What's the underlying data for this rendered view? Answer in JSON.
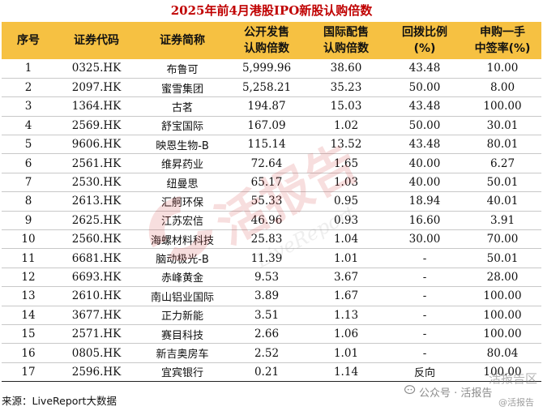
{
  "title": "2025年前4月港股IPO新股认购倍数",
  "columns": [
    {
      "line1": "序号",
      "line2": ""
    },
    {
      "line1": "证券代码",
      "line2": ""
    },
    {
      "line1": "证券简称",
      "line2": ""
    },
    {
      "line1": "公开发售",
      "line2": "认购倍数"
    },
    {
      "line1": "国际配售",
      "line2": "认购倍数"
    },
    {
      "line1": "回拨比例",
      "line2": "(%)"
    },
    {
      "line1": "申购一手",
      "line2": "中签率(%)"
    }
  ],
  "rows": [
    [
      "1",
      "0325.HK",
      "布鲁可",
      "5,999.96",
      "38.60",
      "43.48",
      "10.00"
    ],
    [
      "2",
      "2097.HK",
      "蜜雪集团",
      "5,258.21",
      "35.23",
      "50.00",
      "8.00"
    ],
    [
      "3",
      "1364.HK",
      "古茗",
      "194.87",
      "15.03",
      "43.48",
      "100.00"
    ],
    [
      "4",
      "2569.HK",
      "舒宝国际",
      "167.09",
      "1.02",
      "50.00",
      "30.01"
    ],
    [
      "5",
      "9606.HK",
      "映恩生物-B",
      "115.14",
      "13.52",
      "43.48",
      "80.01"
    ],
    [
      "6",
      "2561.HK",
      "维昇药业",
      "72.64",
      "1.65",
      "40.00",
      "6.27"
    ],
    [
      "7",
      "2530.HK",
      "纽曼思",
      "65.17",
      "1.03",
      "40.00",
      "50.01"
    ],
    [
      "8",
      "2613.HK",
      "汇舸环保",
      "55.33",
      "0.95",
      "18.94",
      "40.01"
    ],
    [
      "9",
      "2625.HK",
      "江苏宏信",
      "46.96",
      "0.93",
      "16.60",
      "3.91"
    ],
    [
      "10",
      "2560.HK",
      "海螺材料科技",
      "25.83",
      "1.04",
      "30.00",
      "70.00"
    ],
    [
      "11",
      "6681.HK",
      "脑动极光-B",
      "11.39",
      "1.01",
      "-",
      "50.01"
    ],
    [
      "12",
      "6693.HK",
      "赤峰黄金",
      "9.53",
      "3.67",
      "-",
      "28.00"
    ],
    [
      "13",
      "2610.HK",
      "南山铝业国际",
      "3.89",
      "1.67",
      "-",
      "100.00"
    ],
    [
      "14",
      "3677.HK",
      "正力新能",
      "3.51",
      "1.13",
      "-",
      "100.00"
    ],
    [
      "15",
      "2571.HK",
      "赛目科技",
      "2.66",
      "1.06",
      "-",
      "100.00"
    ],
    [
      "16",
      "0805.HK",
      "新吉奥房车",
      "2.52",
      "1.01",
      "-",
      "80.04"
    ],
    [
      "17",
      "2596.HK",
      "宜宾银行",
      "0.21",
      "1.14",
      "反向",
      "100.00"
    ]
  ],
  "source": "来源：LiveReport大数据",
  "watermark": {
    "text": "活报告",
    "subtext": "LiveReport"
  },
  "wechat": {
    "line1": "活报告区",
    "line2": "公众号 · 活报告",
    "line3": "@活报告"
  },
  "colors": {
    "title": "#c00000",
    "header_bg": "#f6c142",
    "watermark": "#d43a3a"
  }
}
